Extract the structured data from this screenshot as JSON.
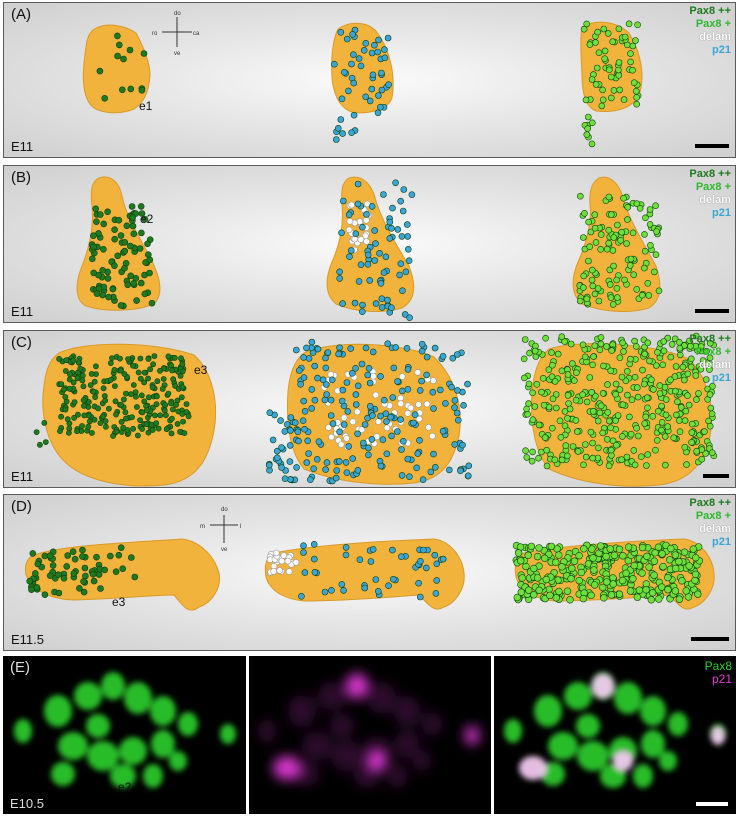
{
  "figure": {
    "panels": [
      {
        "label": "(A)",
        "stage": "E11",
        "embryo": "e1",
        "legend": [
          "Pax8 ++",
          "Pax8 +",
          "delam",
          "p21"
        ],
        "axes_compass": [
          "do",
          "ro",
          "ca",
          "ve"
        ]
      },
      {
        "label": "(B)",
        "stage": "E11",
        "embryo": "e2",
        "legend": [
          "Pax8 ++",
          "Pax8 +",
          "delam",
          "p21"
        ]
      },
      {
        "label": "(C)",
        "stage": "E11",
        "embryo": "e3",
        "legend": [
          "Pax8 ++",
          "Pax8 +",
          "delam",
          "p21"
        ]
      },
      {
        "label": "(D)",
        "stage": "E11.5",
        "embryo": "e3",
        "legend": [
          "Pax8 ++",
          "Pax8 +",
          "delam",
          "p21"
        ],
        "axes_compass": [
          "do",
          "m",
          "l",
          "ve"
        ]
      },
      {
        "label": "(E)",
        "stage": "E10.5",
        "embryo": "e2",
        "legend": [
          "Pax8",
          "p21"
        ]
      }
    ]
  },
  "colors": {
    "tissue": "#f2b33c",
    "pax8_strong": "#1f7a1f",
    "pax8_weak": "#6fe03a",
    "delam": "#ffffff",
    "p21": "#3aa6d8",
    "pax8_fluor": "#2fd12f",
    "p21_fluor": "#e23ad8"
  }
}
